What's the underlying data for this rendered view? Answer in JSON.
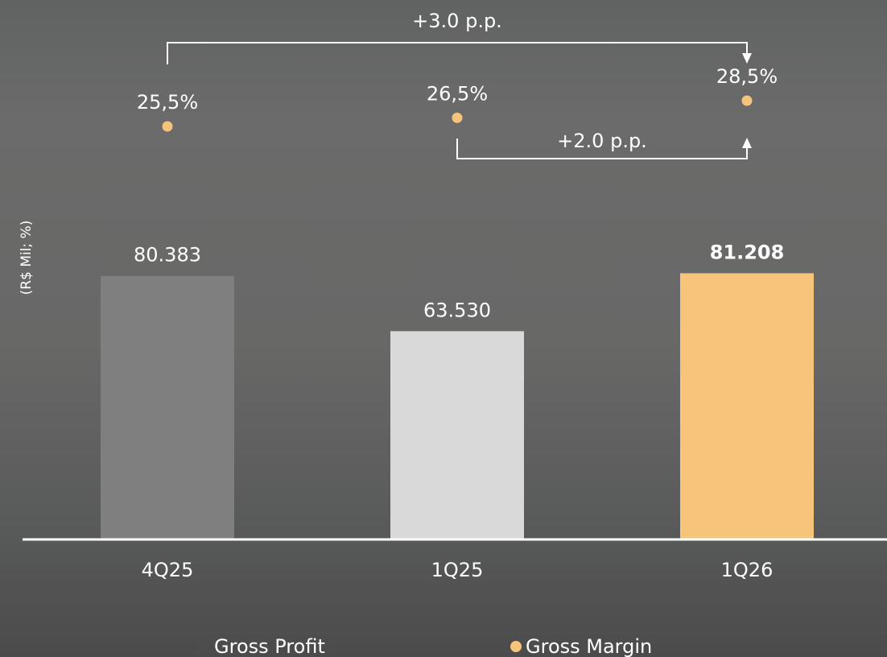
{
  "chart_data": {
    "type": "bar",
    "categories": [
      "4Q25",
      "1Q25",
      "1Q26"
    ],
    "series": [
      {
        "name": "Gross Profit",
        "kind": "bar",
        "values": [
          80383,
          63530,
          81208
        ],
        "labels": [
          "80.383",
          "63.530",
          "81.208"
        ],
        "colors": [
          "#7f7f7f",
          "#d9d9d9",
          "#f6c47a"
        ],
        "bold_label_index": 2
      },
      {
        "name": "Gross Margin",
        "kind": "point",
        "values": [
          25.5,
          26.5,
          28.5
        ],
        "labels": [
          "25,5%",
          "26,5%",
          "28,5%"
        ],
        "color": "#f6c47a"
      }
    ],
    "annotations": [
      {
        "from": "4Q25",
        "to": "1Q26",
        "text": "+3.0 p.p.",
        "arrow": "down",
        "placement": "above"
      },
      {
        "from": "1Q25",
        "to": "1Q26",
        "text": "+2.0 p.p.",
        "arrow": "up",
        "placement": "below"
      }
    ],
    "ylabel": "(R$ Mil; %)",
    "ylim": [
      0,
      140000
    ],
    "grid": false,
    "legend": {
      "position": "bottom",
      "entries": [
        {
          "text": "Gross Profit",
          "marker": "square",
          "color": "#4d4d4d"
        },
        {
          "text": "Gross Margin",
          "marker": "circle",
          "color": "#f6c47a"
        }
      ]
    },
    "colors": {
      "text": "#ffffff",
      "axis": "#ffffff"
    }
  }
}
